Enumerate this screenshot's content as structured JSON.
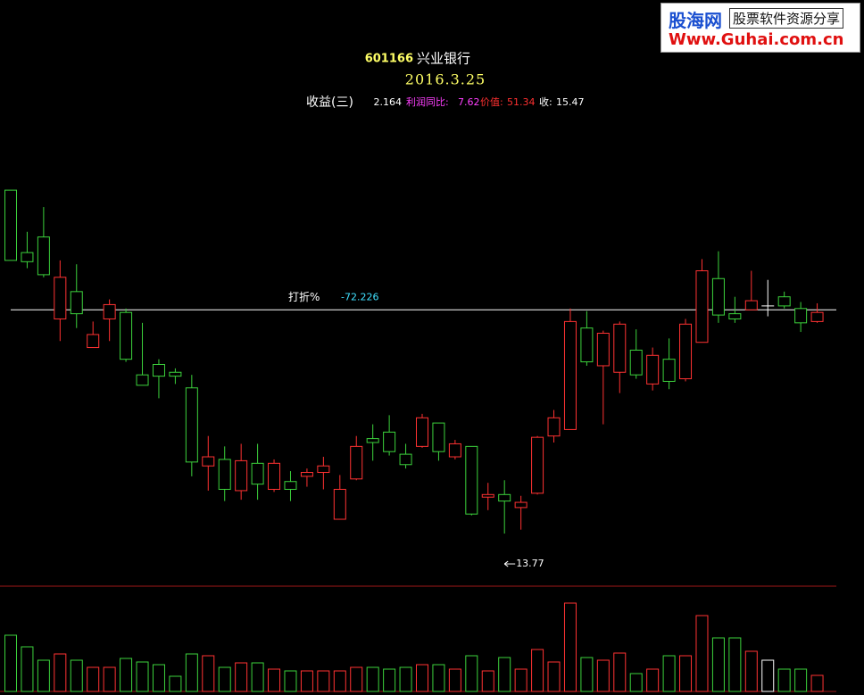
{
  "chart_data": {
    "type": "candlestick",
    "code": "601166",
    "name": "兴业银行",
    "date": "2016.3.25",
    "indicators": [
      {
        "label": "收益(三)",
        "value": 2.164,
        "color": "#ffffff"
      },
      {
        "label": "利润同比:",
        "value": 7.62,
        "color": "#ff40ff"
      },
      {
        "label": "价值:",
        "value": 51.34,
        "color": "#ff3030"
      },
      {
        "label": "收:",
        "value": 15.47,
        "color": "#ffffff"
      }
    ],
    "reference_line": {
      "label": "打折%",
      "value": -72.226,
      "price": 15.49
    },
    "low_marker": 13.77,
    "up_color": "#ff3232",
    "down_color": "#3cd23c",
    "flat_color": "#ffffff",
    "ylim": [
      13.4,
      16.5
    ],
    "open": [
      16.41,
      15.93,
      16.05,
      15.42,
      15.63,
      15.2,
      15.42,
      15.47,
      14.99,
      15.07,
      15.01,
      14.89,
      14.29,
      14.34,
      14.1,
      14.31,
      14.11,
      14.17,
      14.21,
      14.24,
      13.88,
      14.19,
      14.5,
      14.55,
      14.38,
      14.44,
      14.62,
      14.36,
      14.44,
      14.05,
      14.07,
      13.97,
      14.08,
      14.52,
      14.57,
      15.35,
      15.06,
      15.01,
      15.18,
      14.92,
      15.11,
      14.96,
      15.24,
      15.73,
      15.46,
      15.49,
      15.52,
      15.59,
      15.5,
      15.4
    ],
    "high": [
      16.41,
      16.09,
      16.28,
      15.87,
      15.84,
      15.4,
      15.57,
      15.5,
      15.39,
      15.11,
      15.04,
      14.99,
      14.52,
      14.44,
      14.46,
      14.46,
      14.34,
      14.25,
      14.27,
      14.36,
      14.22,
      14.52,
      14.61,
      14.68,
      14.46,
      14.69,
      14.62,
      14.49,
      14.44,
      14.16,
      14.18,
      14.06,
      14.52,
      14.72,
      15.5,
      15.48,
      15.33,
      15.4,
      15.34,
      15.2,
      15.27,
      15.42,
      15.88,
      15.94,
      15.59,
      15.79,
      15.72,
      15.63,
      15.55,
      15.54
    ],
    "low": [
      15.87,
      15.81,
      15.74,
      15.25,
      15.35,
      15.2,
      15.25,
      15.09,
      14.91,
      14.81,
      14.92,
      14.21,
      14.1,
      14.02,
      14.03,
      14.03,
      14.09,
      14.02,
      14.13,
      14.11,
      13.88,
      14.18,
      14.33,
      14.37,
      14.27,
      14.43,
      14.33,
      14.34,
      13.91,
      13.95,
      13.77,
      13.8,
      14.07,
      14.47,
      14.57,
      15.06,
      14.61,
      14.85,
      14.96,
      14.87,
      14.88,
      14.94,
      15.24,
      15.39,
      15.39,
      15.49,
      15.44,
      15.5,
      15.32,
      15.39
    ],
    "close": [
      15.87,
      15.86,
      15.76,
      15.74,
      15.46,
      15.3,
      15.53,
      15.11,
      14.91,
      14.98,
      14.98,
      14.32,
      14.36,
      14.11,
      14.33,
      14.15,
      14.31,
      14.11,
      14.24,
      14.29,
      14.11,
      14.44,
      14.47,
      14.4,
      14.3,
      14.66,
      14.4,
      14.46,
      13.92,
      14.07,
      14.02,
      14.01,
      14.51,
      14.66,
      15.4,
      15.09,
      15.31,
      15.38,
      14.99,
      15.14,
      14.94,
      15.38,
      15.79,
      15.45,
      15.42,
      15.56,
      15.52,
      15.52,
      15.39,
      15.47
    ],
    "volume": {
      "ylim": [
        0,
        100
      ],
      "values": [
        63,
        50,
        35,
        42,
        35,
        27,
        27,
        37,
        33,
        30,
        17,
        42,
        40,
        27,
        32,
        32,
        25,
        23,
        23,
        23,
        23,
        27,
        27,
        25,
        27,
        30,
        30,
        25,
        40,
        23,
        38,
        25,
        47,
        33,
        99,
        38,
        35,
        43,
        20,
        25,
        40,
        40,
        85,
        60,
        60,
        45,
        35,
        25,
        25,
        18
      ]
    }
  },
  "logo": {
    "site": "股海网",
    "slogan": "股票软件资源分享",
    "url": "Www.Guhai.com.cn"
  }
}
